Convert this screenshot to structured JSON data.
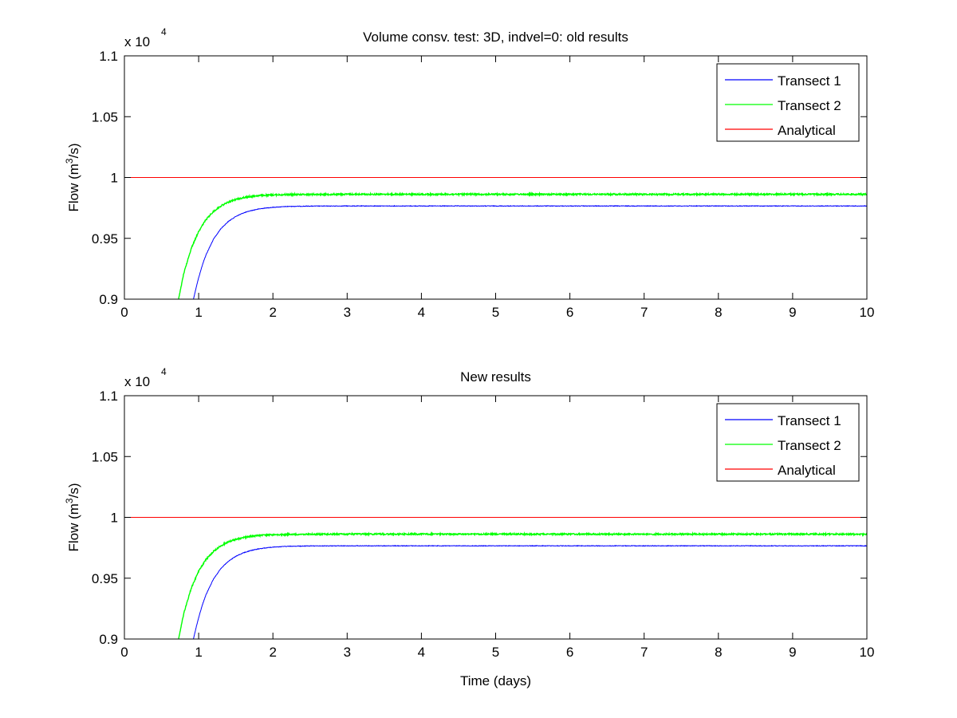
{
  "chart_data": [
    {
      "type": "line",
      "title": "Volume consv. test: 3D, indvel=0: old results",
      "xlabel": "",
      "ylabel_base": "Flow (m",
      "ylabel_sup": "3",
      "ylabel_tail": "/s)",
      "multiplier_base": "x 10",
      "multiplier_exp": "4",
      "xlim": [
        0,
        10
      ],
      "ylim": [
        0.9,
        1.1
      ],
      "xticks": [
        "0",
        "1",
        "2",
        "3",
        "4",
        "5",
        "6",
        "7",
        "8",
        "9",
        "10"
      ],
      "yticks": [
        "0.9",
        "0.95",
        "1",
        "1.05",
        "1.1"
      ],
      "legend_position": "top-right",
      "series": [
        {
          "name": "Transect 1",
          "color": "#0000ff",
          "x": [
            0.93,
            0.97,
            1.0,
            1.05,
            1.1,
            1.2,
            1.3,
            1.4,
            1.5,
            1.6,
            1.7,
            1.8,
            1.9,
            2.0,
            2.2,
            2.5,
            3.0,
            4.0,
            5.0,
            6.0,
            7.0,
            8.0,
            9.0,
            10.0
          ],
          "y": [
            0.9,
            0.9106,
            0.9176,
            0.9281,
            0.9366,
            0.9493,
            0.958,
            0.9639,
            0.968,
            0.9708,
            0.9727,
            0.974,
            0.9749,
            0.9755,
            0.9762,
            0.9765,
            0.9766,
            0.9766,
            0.9766,
            0.9766,
            0.9766,
            0.9766,
            0.9766,
            0.9766
          ]
        },
        {
          "name": "Transect 2",
          "color": "#00ff00",
          "x": [
            0.73,
            0.8,
            0.9,
            1.0,
            1.1,
            1.2,
            1.3,
            1.4,
            1.5,
            1.6,
            1.7,
            1.8,
            2.0,
            2.2,
            2.5,
            3.0,
            4.0,
            5.0,
            6.0,
            7.0,
            8.0,
            9.0,
            10.0
          ],
          "y": [
            0.9,
            0.9212,
            0.9417,
            0.9558,
            0.9655,
            0.9721,
            0.9767,
            0.9798,
            0.9819,
            0.9834,
            0.9844,
            0.9851,
            0.9857,
            0.986,
            0.9861,
            0.9862,
            0.9862,
            0.9862,
            0.9862,
            0.9862,
            0.9862,
            0.9862,
            0.9862
          ]
        },
        {
          "name": "Analytical",
          "color": "#ff0000",
          "x": [
            0,
            10
          ],
          "y": [
            1.0,
            1.0
          ]
        }
      ]
    },
    {
      "type": "line",
      "title": "New results",
      "xlabel": "Time (days)",
      "ylabel_base": "Flow (m",
      "ylabel_sup": "3",
      "ylabel_tail": "/s)",
      "multiplier_base": "x 10",
      "multiplier_exp": "4",
      "xlim": [
        0,
        10
      ],
      "ylim": [
        0.9,
        1.1
      ],
      "xticks": [
        "0",
        "1",
        "2",
        "3",
        "4",
        "5",
        "6",
        "7",
        "8",
        "9",
        "10"
      ],
      "yticks": [
        "0.9",
        "0.95",
        "1",
        "1.05",
        "1.1"
      ],
      "legend_position": "top-right",
      "series": [
        {
          "name": "Transect 1",
          "color": "#0000ff",
          "x": [
            0.93,
            0.97,
            1.0,
            1.05,
            1.1,
            1.2,
            1.3,
            1.4,
            1.5,
            1.6,
            1.7,
            1.8,
            1.9,
            2.0,
            2.2,
            2.5,
            3.0,
            4.0,
            5.0,
            6.0,
            7.0,
            8.0,
            9.0,
            10.0
          ],
          "y": [
            0.9,
            0.9106,
            0.9176,
            0.9281,
            0.9366,
            0.9493,
            0.958,
            0.9639,
            0.968,
            0.9708,
            0.9727,
            0.974,
            0.9749,
            0.9755,
            0.9762,
            0.9765,
            0.9766,
            0.9766,
            0.9766,
            0.9766,
            0.9766,
            0.9766,
            0.9766,
            0.9766
          ]
        },
        {
          "name": "Transect 2",
          "color": "#00ff00",
          "x": [
            0.73,
            0.8,
            0.9,
            1.0,
            1.1,
            1.2,
            1.3,
            1.4,
            1.5,
            1.6,
            1.7,
            1.8,
            2.0,
            2.2,
            2.5,
            3.0,
            4.0,
            5.0,
            6.0,
            7.0,
            8.0,
            9.0,
            10.0
          ],
          "y": [
            0.9,
            0.9212,
            0.9417,
            0.9558,
            0.9655,
            0.9721,
            0.9767,
            0.9798,
            0.9819,
            0.9834,
            0.9844,
            0.9851,
            0.9857,
            0.986,
            0.9861,
            0.9862,
            0.9862,
            0.9862,
            0.9862,
            0.9862,
            0.9862,
            0.9862,
            0.9862
          ]
        },
        {
          "name": "Analytical",
          "color": "#ff0000",
          "x": [
            0,
            10
          ],
          "y": [
            1.0,
            1.0
          ]
        }
      ]
    }
  ]
}
